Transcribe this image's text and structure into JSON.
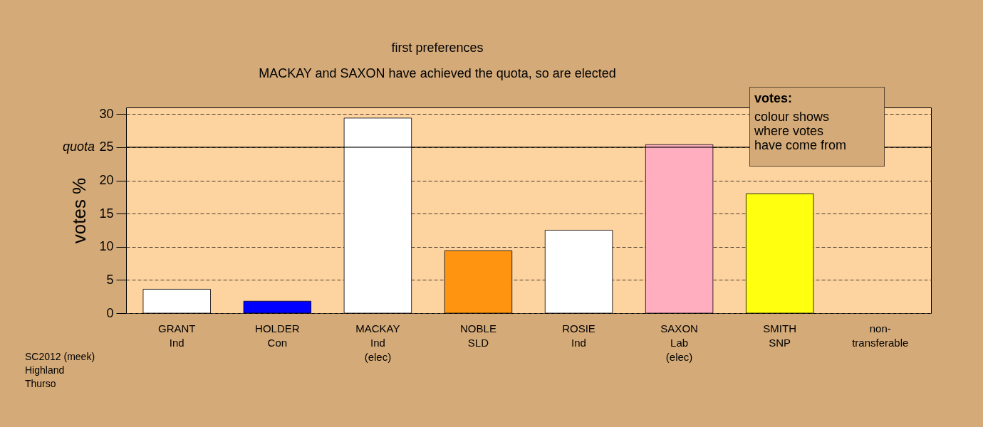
{
  "chart_data": {
    "type": "bar",
    "title": "first preferences",
    "subtitle": "MACKAY and SAXON have achieved the quota, so are elected",
    "ylabel": "votes %",
    "categories": [
      "GRANT\nInd",
      "HOLDER\nCon",
      "MACKAY\nInd\n(elec)",
      "NOBLE\nSLD",
      "ROSIE\nInd",
      "SAXON\nLab\n(elec)",
      "SMITH\nSNP",
      "non-\ntransferable"
    ],
    "values": [
      3.6,
      1.8,
      29.4,
      9.4,
      12.5,
      25.4,
      18.0,
      0
    ],
    "colors": [
      "#ffffff",
      "#0000ff",
      "#ffffff",
      "#ff9410",
      "#ffffff",
      "#ffaec0",
      "#ffff10",
      "#ffffff"
    ],
    "ylim": [
      0,
      31
    ],
    "yticks": [
      0,
      5,
      10,
      15,
      20,
      25,
      30
    ],
    "grid": "y",
    "legend": false,
    "ref_lines": [
      {
        "axis": "y",
        "value": 25,
        "label": "quota"
      }
    ],
    "annotations": [
      "votes:\ncolour shows\nwhere votes\nhave come from",
      "SC2012 (meek)\nHighland\nThurso"
    ]
  }
}
